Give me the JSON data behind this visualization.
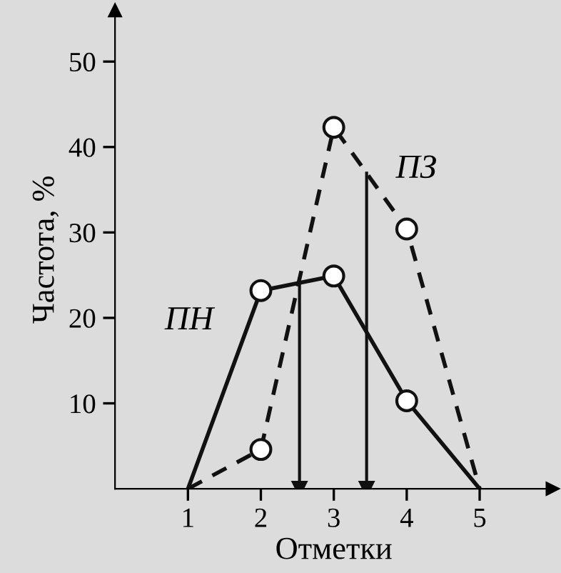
{
  "chart_data": {
    "type": "line",
    "xlabel": "Отметки",
    "ylabel": "Частота, %",
    "x": [
      1,
      2,
      3,
      4,
      5
    ],
    "series": [
      {
        "name": "ПН",
        "color": "#111111",
        "line_style": "solid",
        "values": [
          0,
          23.2,
          24.9,
          10.3,
          0
        ]
      },
      {
        "name": "ПЗ",
        "color": "#111111",
        "line_style": "dashed",
        "values": [
          0,
          4.6,
          42.3,
          30.4,
          0
        ]
      }
    ],
    "ref_lines": [
      {
        "axis": "x",
        "value": 2.53,
        "color": "#111111"
      },
      {
        "axis": "x",
        "value": 3.45,
        "color": "#111111"
      }
    ],
    "xlim": [
      0,
      6
    ],
    "ylim": [
      0,
      56
    ],
    "xticks": [
      1,
      2,
      3,
      4,
      5
    ],
    "yticks": [
      10,
      20,
      30,
      40,
      50
    ],
    "marker": "circle",
    "grid": false
  }
}
